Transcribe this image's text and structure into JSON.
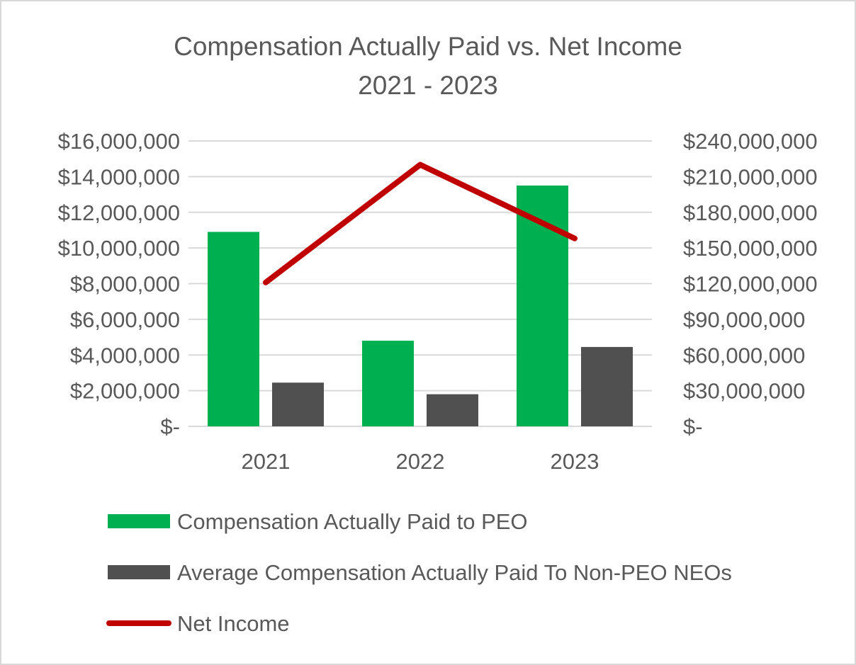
{
  "chart_data": {
    "type": "bar",
    "title": "Compensation Actually Paid vs. Net Income",
    "subtitle": "2021 - 2023",
    "categories": [
      "2021",
      "2022",
      "2023"
    ],
    "series": [
      {
        "name": "Compensation Actually Paid to PEO",
        "type": "bar",
        "axis": "left",
        "color": "#00b050",
        "values": [
          10900000,
          4800000,
          13500000
        ]
      },
      {
        "name": "Average Compensation Actually Paid To Non-PEO NEOs",
        "type": "bar",
        "axis": "left",
        "color": "#505050",
        "values": [
          2450000,
          1800000,
          4450000
        ]
      },
      {
        "name": "Net Income",
        "type": "line",
        "axis": "right",
        "color": "#c00000",
        "values": [
          121000000,
          220000000,
          158000000
        ]
      }
    ],
    "ylim_left": [
      0,
      16000000
    ],
    "ylim_right": [
      0,
      240000000
    ],
    "left_ticks": [
      "$-",
      "$2,000,000",
      "$4,000,000",
      "$6,000,000",
      "$8,000,000",
      "$10,000,000",
      "$12,000,000",
      "$14,000,000",
      "$16,000,000"
    ],
    "right_ticks": [
      "$-",
      "$30,000,000",
      "$60,000,000",
      "$90,000,000",
      "$120,000,000",
      "$150,000,000",
      "$180,000,000",
      "$210,000,000",
      "$240,000,000"
    ],
    "grid": true,
    "legend_position": "bottom-left"
  }
}
